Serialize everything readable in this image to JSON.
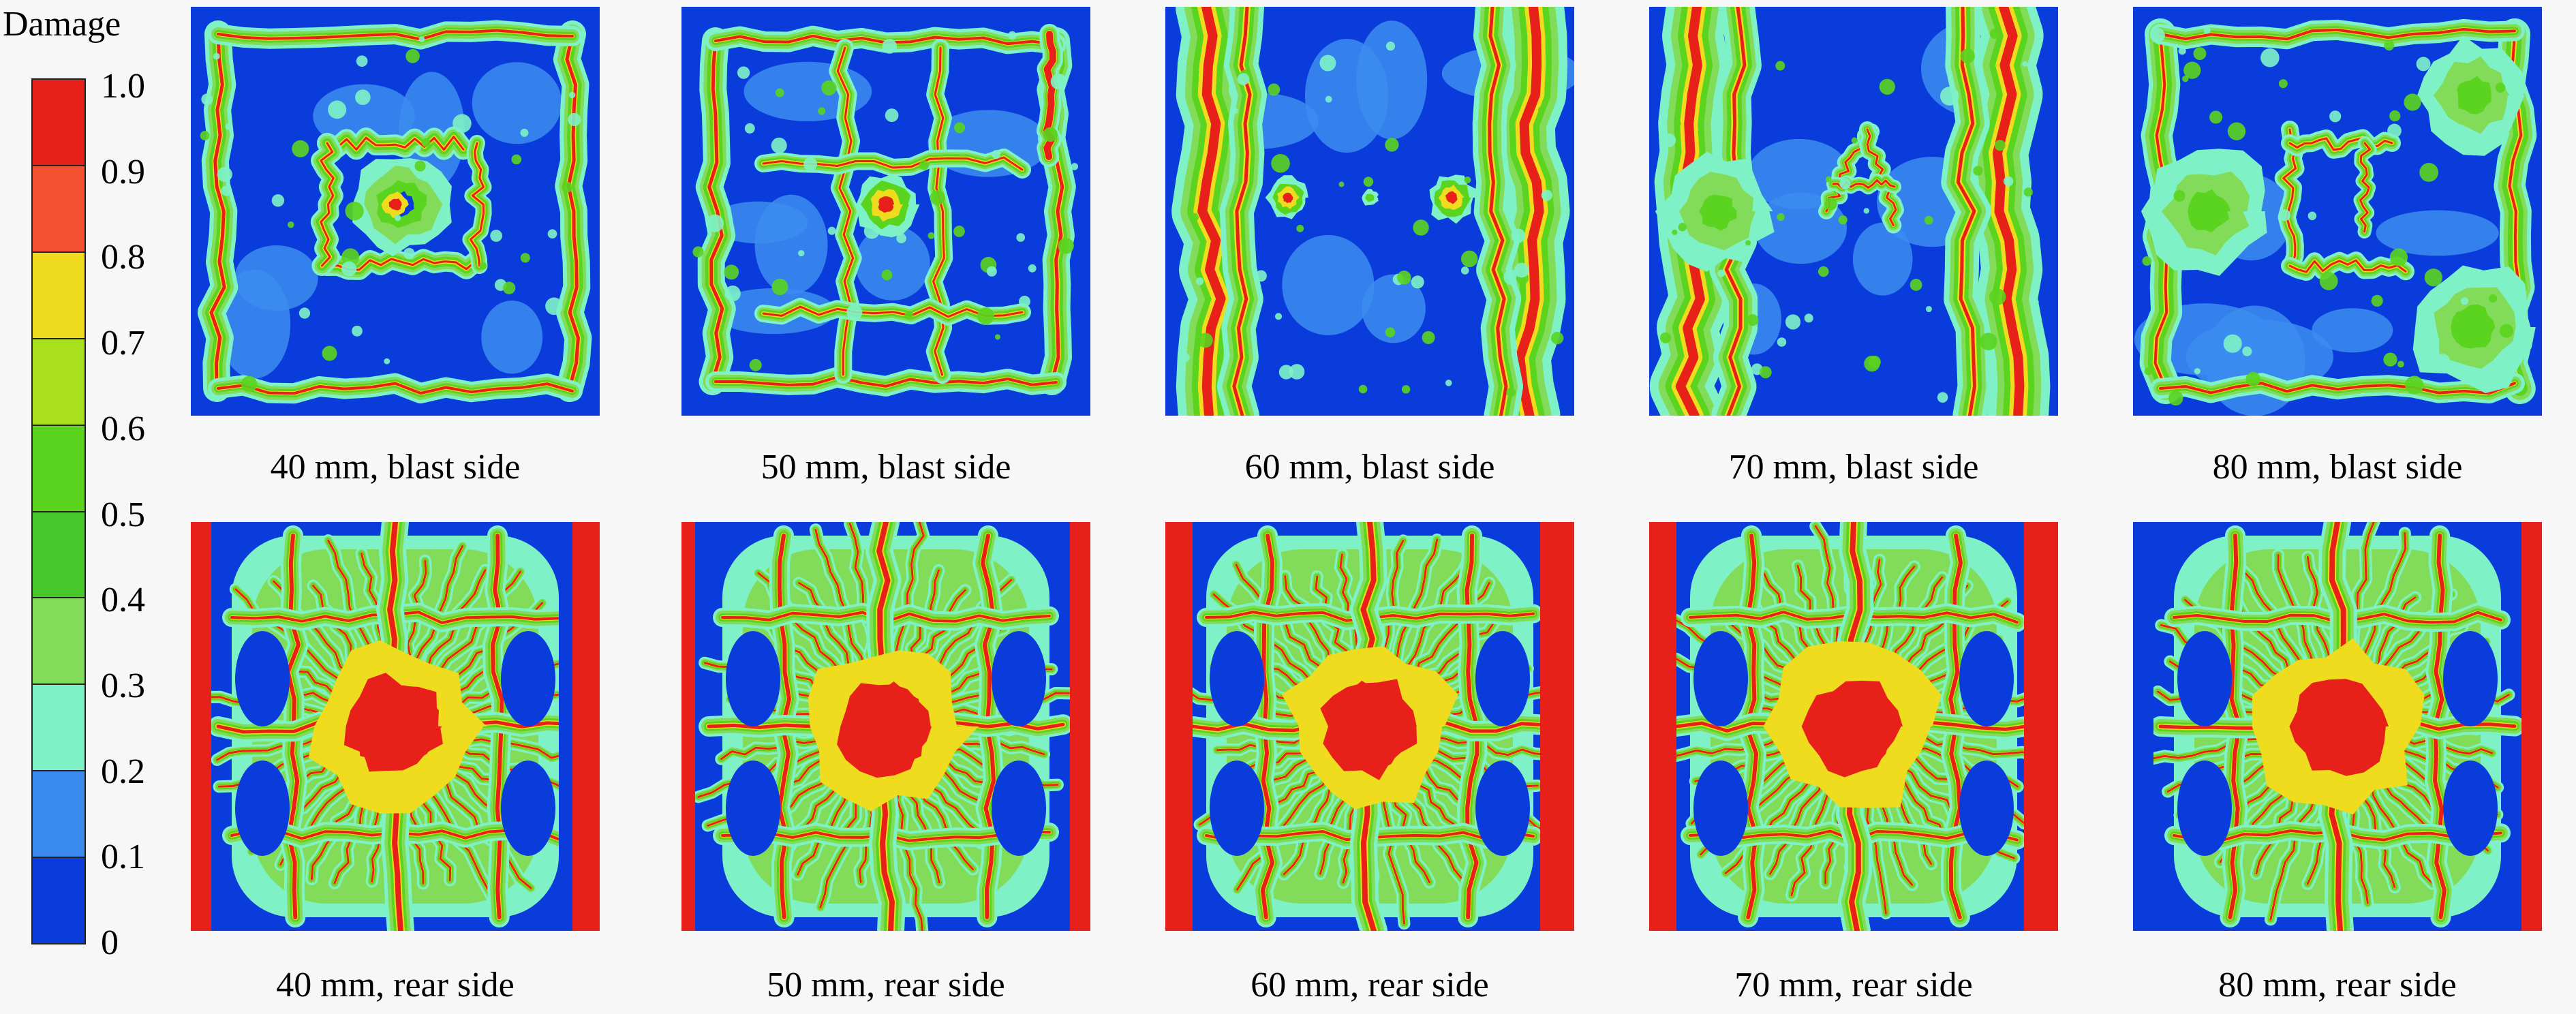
{
  "legend": {
    "title": "Damage",
    "ticks": [
      "1.0",
      "0.9",
      "0.8",
      "0.7",
      "0.6",
      "0.5",
      "0.4",
      "0.3",
      "0.2",
      "0.1",
      "0"
    ],
    "band_colors": [
      "#e8201a",
      "#f45232",
      "#f0dc1e",
      "#a8e01e",
      "#5ad41e",
      "#46c82a",
      "#82dc5a",
      "#7ef2c6",
      "#3c8cf0",
      "#0a3cdc"
    ]
  },
  "panels": [
    {
      "caption": "40 mm, blast side",
      "variant": "blast-1"
    },
    {
      "caption": "50 mm, blast side",
      "variant": "blast-2"
    },
    {
      "caption": "60 mm, blast side",
      "variant": "blast-3"
    },
    {
      "caption": "70 mm, blast side",
      "variant": "blast-4"
    },
    {
      "caption": "80 mm, blast side",
      "variant": "blast-5"
    },
    {
      "caption": "40 mm, rear side",
      "variant": "rear-1"
    },
    {
      "caption": "50 mm, rear side",
      "variant": "rear-2"
    },
    {
      "caption": "60 mm, rear side",
      "variant": "rear-3"
    },
    {
      "caption": "70 mm, rear side",
      "variant": "rear-4"
    },
    {
      "caption": "80 mm, rear side",
      "variant": "rear-5"
    }
  ]
}
